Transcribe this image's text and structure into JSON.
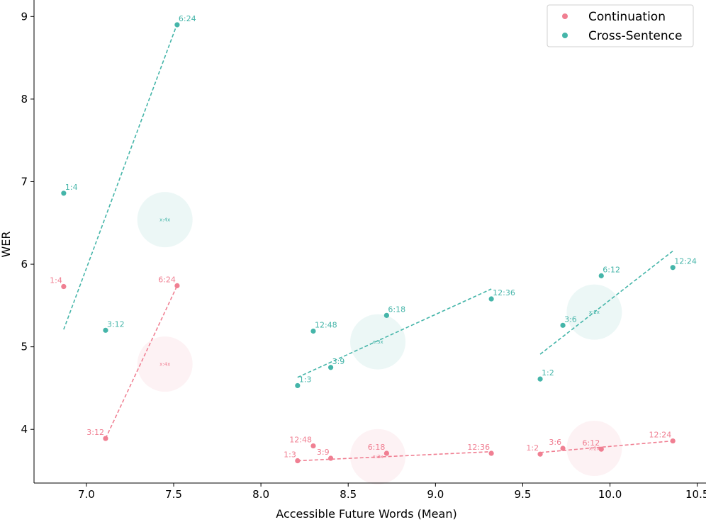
{
  "chart_data": {
    "type": "scatter",
    "title": "",
    "xlabel": "Accessible Future Words (Mean)",
    "ylabel": "WER",
    "xlim": [
      6.7,
      10.55
    ],
    "ylim": [
      3.35,
      9.2
    ],
    "xticks": [
      7.0,
      7.5,
      8.0,
      8.5,
      9.0,
      9.5,
      10.0,
      10.5
    ],
    "xtick_labels": [
      "7.0",
      "7.5",
      "8.0",
      "8.5",
      "9.0",
      "9.5",
      "10.0",
      "10.5"
    ],
    "yticks": [
      4,
      5,
      6,
      7,
      8,
      9
    ],
    "ytick_labels": [
      "4",
      "5",
      "6",
      "7",
      "8",
      "9"
    ],
    "legend_position": "top-right",
    "series": [
      {
        "name": "Continuation",
        "color": "#f07f92",
        "points": [
          {
            "x": 6.87,
            "y": 5.73,
            "label": "1:4"
          },
          {
            "x": 7.11,
            "y": 3.89,
            "label": "3:12"
          },
          {
            "x": 7.52,
            "y": 5.74,
            "label": "6:24"
          },
          {
            "x": 8.21,
            "y": 3.62,
            "label": "1:3"
          },
          {
            "x": 8.4,
            "y": 3.65,
            "label": "3:9"
          },
          {
            "x": 8.72,
            "y": 3.71,
            "label": "6:18"
          },
          {
            "x": 9.32,
            "y": 3.71,
            "label": "12:36"
          },
          {
            "x": 8.3,
            "y": 3.8,
            "label": "12:48"
          },
          {
            "x": 9.6,
            "y": 3.7,
            "label": "1:2"
          },
          {
            "x": 9.73,
            "y": 3.77,
            "label": "3:6"
          },
          {
            "x": 9.95,
            "y": 3.76,
            "label": "6:12"
          },
          {
            "x": 10.36,
            "y": 3.86,
            "label": "12:24"
          }
        ],
        "fits": [
          {
            "x": [
              7.11,
              7.52
            ],
            "y": [
              3.89,
              5.74
            ]
          },
          {
            "x": [
              8.21,
              9.32
            ],
            "y": [
              3.62,
              3.73
            ]
          },
          {
            "x": [
              9.6,
              10.36
            ],
            "y": [
              3.72,
              3.86
            ]
          }
        ],
        "centroids": [
          {
            "x": 7.45,
            "y": 4.79,
            "label": "x:4x"
          },
          {
            "x": 8.67,
            "y": 3.67,
            "label": "x:3x"
          },
          {
            "x": 9.91,
            "y": 3.77,
            "label": "x:2x"
          }
        ]
      },
      {
        "name": "Cross-Sentence",
        "color": "#45b5a9",
        "points": [
          {
            "x": 6.87,
            "y": 6.86,
            "label": "1:4"
          },
          {
            "x": 7.11,
            "y": 5.2,
            "label": "3:12"
          },
          {
            "x": 7.52,
            "y": 8.9,
            "label": "6:24"
          },
          {
            "x": 8.21,
            "y": 4.53,
            "label": "1:3"
          },
          {
            "x": 8.4,
            "y": 4.75,
            "label": "3:9"
          },
          {
            "x": 8.3,
            "y": 5.19,
            "label": "12:48"
          },
          {
            "x": 8.72,
            "y": 5.38,
            "label": "6:18"
          },
          {
            "x": 9.32,
            "y": 5.58,
            "label": "12:36"
          },
          {
            "x": 9.6,
            "y": 4.61,
            "label": "1:2"
          },
          {
            "x": 9.73,
            "y": 5.26,
            "label": "3:6"
          },
          {
            "x": 9.95,
            "y": 5.86,
            "label": "6:12"
          },
          {
            "x": 10.36,
            "y": 5.96,
            "label": "12:24"
          }
        ],
        "fits": [
          {
            "x": [
              6.87,
              7.52
            ],
            "y": [
              5.21,
              8.91
            ]
          },
          {
            "x": [
              8.21,
              9.32
            ],
            "y": [
              4.63,
              5.7
            ]
          },
          {
            "x": [
              9.6,
              10.36
            ],
            "y": [
              4.91,
              6.16
            ]
          }
        ],
        "centroids": [
          {
            "x": 7.45,
            "y": 6.54,
            "label": "x:4x"
          },
          {
            "x": 8.67,
            "y": 5.06,
            "label": "x:3x"
          },
          {
            "x": 9.91,
            "y": 5.42,
            "label": "x:2x"
          }
        ]
      }
    ]
  }
}
